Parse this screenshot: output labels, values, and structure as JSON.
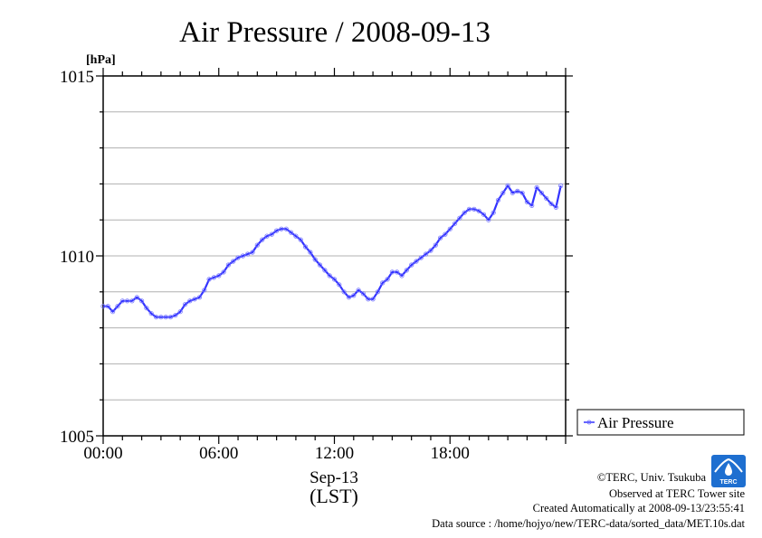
{
  "chart_data": {
    "type": "line",
    "title": "Air Pressure / 2008-09-13",
    "ylabel": "[hPa]",
    "xlabel": "Sep-13",
    "xlabel2": "(LST)",
    "ylim": [
      1005,
      1015
    ],
    "yticks": [
      "1005",
      "1010",
      "1015"
    ],
    "xlim": [
      0,
      24
    ],
    "xticks": [
      {
        "v": 0,
        "label": "00:00"
      },
      {
        "v": 6,
        "label": "06:00"
      },
      {
        "v": 12,
        "label": "12:00"
      },
      {
        "v": 18,
        "label": "18:00"
      }
    ],
    "grid": true,
    "legend": "right",
    "color": "#3333ff",
    "series": [
      {
        "name": "Air Pressure",
        "x": [
          0.0,
          0.25,
          0.5,
          0.75,
          1.0,
          1.25,
          1.5,
          1.75,
          2.0,
          2.25,
          2.5,
          2.75,
          3.0,
          3.25,
          3.5,
          3.75,
          4.0,
          4.25,
          4.5,
          4.75,
          5.0,
          5.25,
          5.5,
          5.75,
          6.0,
          6.25,
          6.5,
          6.75,
          7.0,
          7.25,
          7.5,
          7.75,
          8.0,
          8.25,
          8.5,
          8.75,
          9.0,
          9.25,
          9.5,
          9.75,
          10.0,
          10.25,
          10.5,
          10.75,
          11.0,
          11.25,
          11.5,
          11.75,
          12.0,
          12.25,
          12.5,
          12.75,
          13.0,
          13.25,
          13.5,
          13.75,
          14.0,
          14.25,
          14.5,
          14.75,
          15.0,
          15.25,
          15.5,
          15.75,
          16.0,
          16.25,
          16.5,
          16.75,
          17.0,
          17.25,
          17.5,
          17.75,
          18.0,
          18.25,
          18.5,
          18.75,
          19.0,
          19.25,
          19.5,
          19.75,
          20.0,
          20.25,
          20.5,
          20.75,
          21.0,
          21.25,
          21.5,
          21.75,
          22.0,
          22.25,
          22.5,
          22.75,
          23.0,
          23.25,
          23.5,
          23.75
        ],
        "values": [
          1008.6,
          1008.6,
          1008.45,
          1008.6,
          1008.75,
          1008.75,
          1008.75,
          1008.85,
          1008.75,
          1008.55,
          1008.4,
          1008.3,
          1008.3,
          1008.3,
          1008.3,
          1008.35,
          1008.45,
          1008.65,
          1008.75,
          1008.8,
          1008.85,
          1009.05,
          1009.35,
          1009.4,
          1009.45,
          1009.55,
          1009.75,
          1009.85,
          1009.95,
          1010.0,
          1010.05,
          1010.1,
          1010.3,
          1010.45,
          1010.55,
          1010.6,
          1010.7,
          1010.75,
          1010.75,
          1010.65,
          1010.55,
          1010.45,
          1010.25,
          1010.1,
          1009.9,
          1009.75,
          1009.6,
          1009.45,
          1009.35,
          1009.2,
          1009.0,
          1008.85,
          1008.9,
          1009.05,
          1008.95,
          1008.8,
          1008.8,
          1009.0,
          1009.25,
          1009.35,
          1009.55,
          1009.55,
          1009.45,
          1009.6,
          1009.75,
          1009.85,
          1009.95,
          1010.05,
          1010.15,
          1010.3,
          1010.5,
          1010.6,
          1010.75,
          1010.9,
          1011.05,
          1011.2,
          1011.3,
          1011.3,
          1011.25,
          1011.15,
          1011.0,
          1011.2,
          1011.55,
          1011.75,
          1011.95,
          1011.75,
          1011.8,
          1011.75,
          1011.5,
          1011.4,
          1011.9,
          1011.75,
          1011.6,
          1011.45,
          1011.35,
          1011.95
        ]
      }
    ]
  },
  "credits": {
    "copyright": "©TERC, Univ. Tsukuba",
    "observed": "Observed at TERC Tower site",
    "created": "Created Automatically at 2008-09-13/23:55:41",
    "source": "Data source : /home/hojyo/new/TERC-data/sorted_data/MET.10s.dat"
  },
  "logo": {
    "text": "TERC",
    "color": "#1e6fd0"
  }
}
